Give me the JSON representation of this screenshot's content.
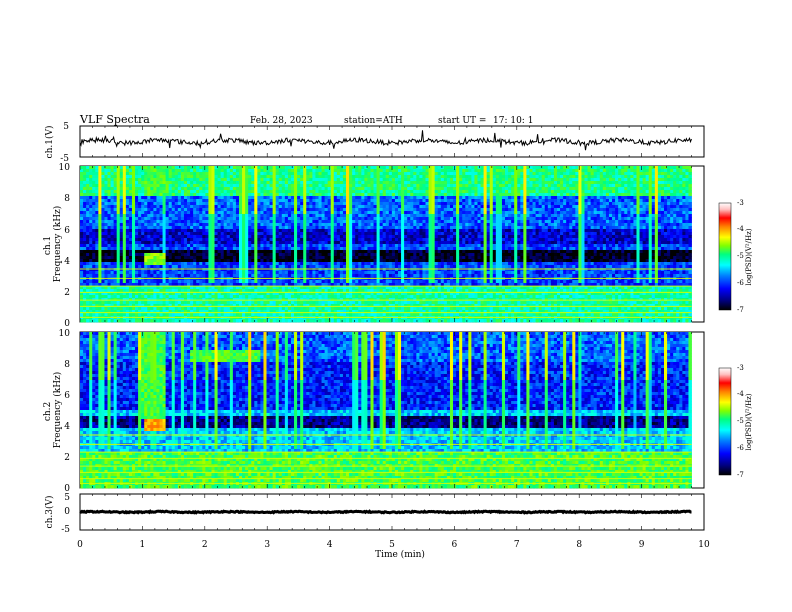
{
  "header": {
    "title": "VLF  Spectra",
    "date": "Feb. 28, 2023",
    "station": "station=ATH",
    "start_label": "start  UT  =",
    "start_time": "17: 10: 1"
  },
  "colors": {
    "colormap": [
      "#000000",
      "#000080",
      "#0000ff",
      "#0080ff",
      "#00ffff",
      "#00ff80",
      "#80ff00",
      "#ffff00",
      "#ff8000",
      "#ff0000",
      "#ffc0c0",
      "#ffffff"
    ],
    "trace": "#000000"
  },
  "chart_data": [
    {
      "type": "line",
      "name": "ch1-waveform",
      "ylabel": "ch.1(V)",
      "ylim": [
        -5,
        5
      ],
      "y_ticks": [
        "5",
        "-5"
      ],
      "xlim": [
        0,
        10
      ],
      "description_values": {
        "baseline_v": 0,
        "typical_amplitude_v": 1.5
      }
    },
    {
      "type": "heatmap",
      "name": "ch1-spectrogram",
      "ylabel": "ch.1\nFrequency (kHz)",
      "xlim": [
        0,
        10
      ],
      "ylim": [
        0,
        10
      ],
      "y_ticks": [
        "0",
        "2",
        "4",
        "6",
        "8",
        "10"
      ],
      "data_end_min": 9.8,
      "colorbar": {
        "label": "log(PSD)(V²/Hz)",
        "ticks": [
          "-3",
          "-4",
          "-5",
          "-6",
          "-7"
        ],
        "range": [
          -7,
          -3
        ]
      },
      "features": [
        {
          "kind": "band",
          "t0": 1.05,
          "t1": 1.35,
          "f0": 3.6,
          "f1": 4.4,
          "level": -4.8
        },
        {
          "kind": "band",
          "t0": 1.05,
          "t1": 1.4,
          "f0": 8.0,
          "f1": 10.0,
          "level": -5.0
        }
      ]
    },
    {
      "type": "heatmap",
      "name": "ch2-spectrogram",
      "ylabel": "ch.2\nFrequency (kHz)",
      "xlim": [
        0,
        10
      ],
      "ylim": [
        0,
        10
      ],
      "y_ticks": [
        "0",
        "2",
        "4",
        "6",
        "8",
        "10"
      ],
      "data_end_min": 9.8,
      "colorbar": {
        "label": "log(PSD)(V²/Hz)",
        "ticks": [
          "-3",
          "-4",
          "-5",
          "-6",
          "-7"
        ],
        "range": [
          -7,
          -3
        ]
      },
      "features": [
        {
          "kind": "band",
          "t0": 1.05,
          "t1": 1.35,
          "f0": 3.6,
          "f1": 4.4,
          "level": -4.2
        },
        {
          "kind": "band",
          "t0": 1.0,
          "t1": 1.35,
          "f0": 4.5,
          "f1": 10.0,
          "level": -5.0
        },
        {
          "kind": "band",
          "t0": 1.75,
          "t1": 2.9,
          "f0": 8.0,
          "f1": 8.8,
          "level": -5.0
        }
      ]
    },
    {
      "type": "line",
      "name": "ch3-waveform",
      "ylabel": "ch.3(V)",
      "ylim": [
        -5,
        5
      ],
      "y_ticks": [
        "5",
        "0",
        "-5"
      ],
      "xlim": [
        0,
        10
      ],
      "description_values": {
        "baseline_v": 0,
        "typical_amplitude_v": 0.3
      }
    }
  ],
  "xaxis": {
    "label": "Time  (min)",
    "ticks": [
      "0",
      "1",
      "2",
      "3",
      "4",
      "5",
      "6",
      "7",
      "8",
      "9",
      "10"
    ]
  }
}
